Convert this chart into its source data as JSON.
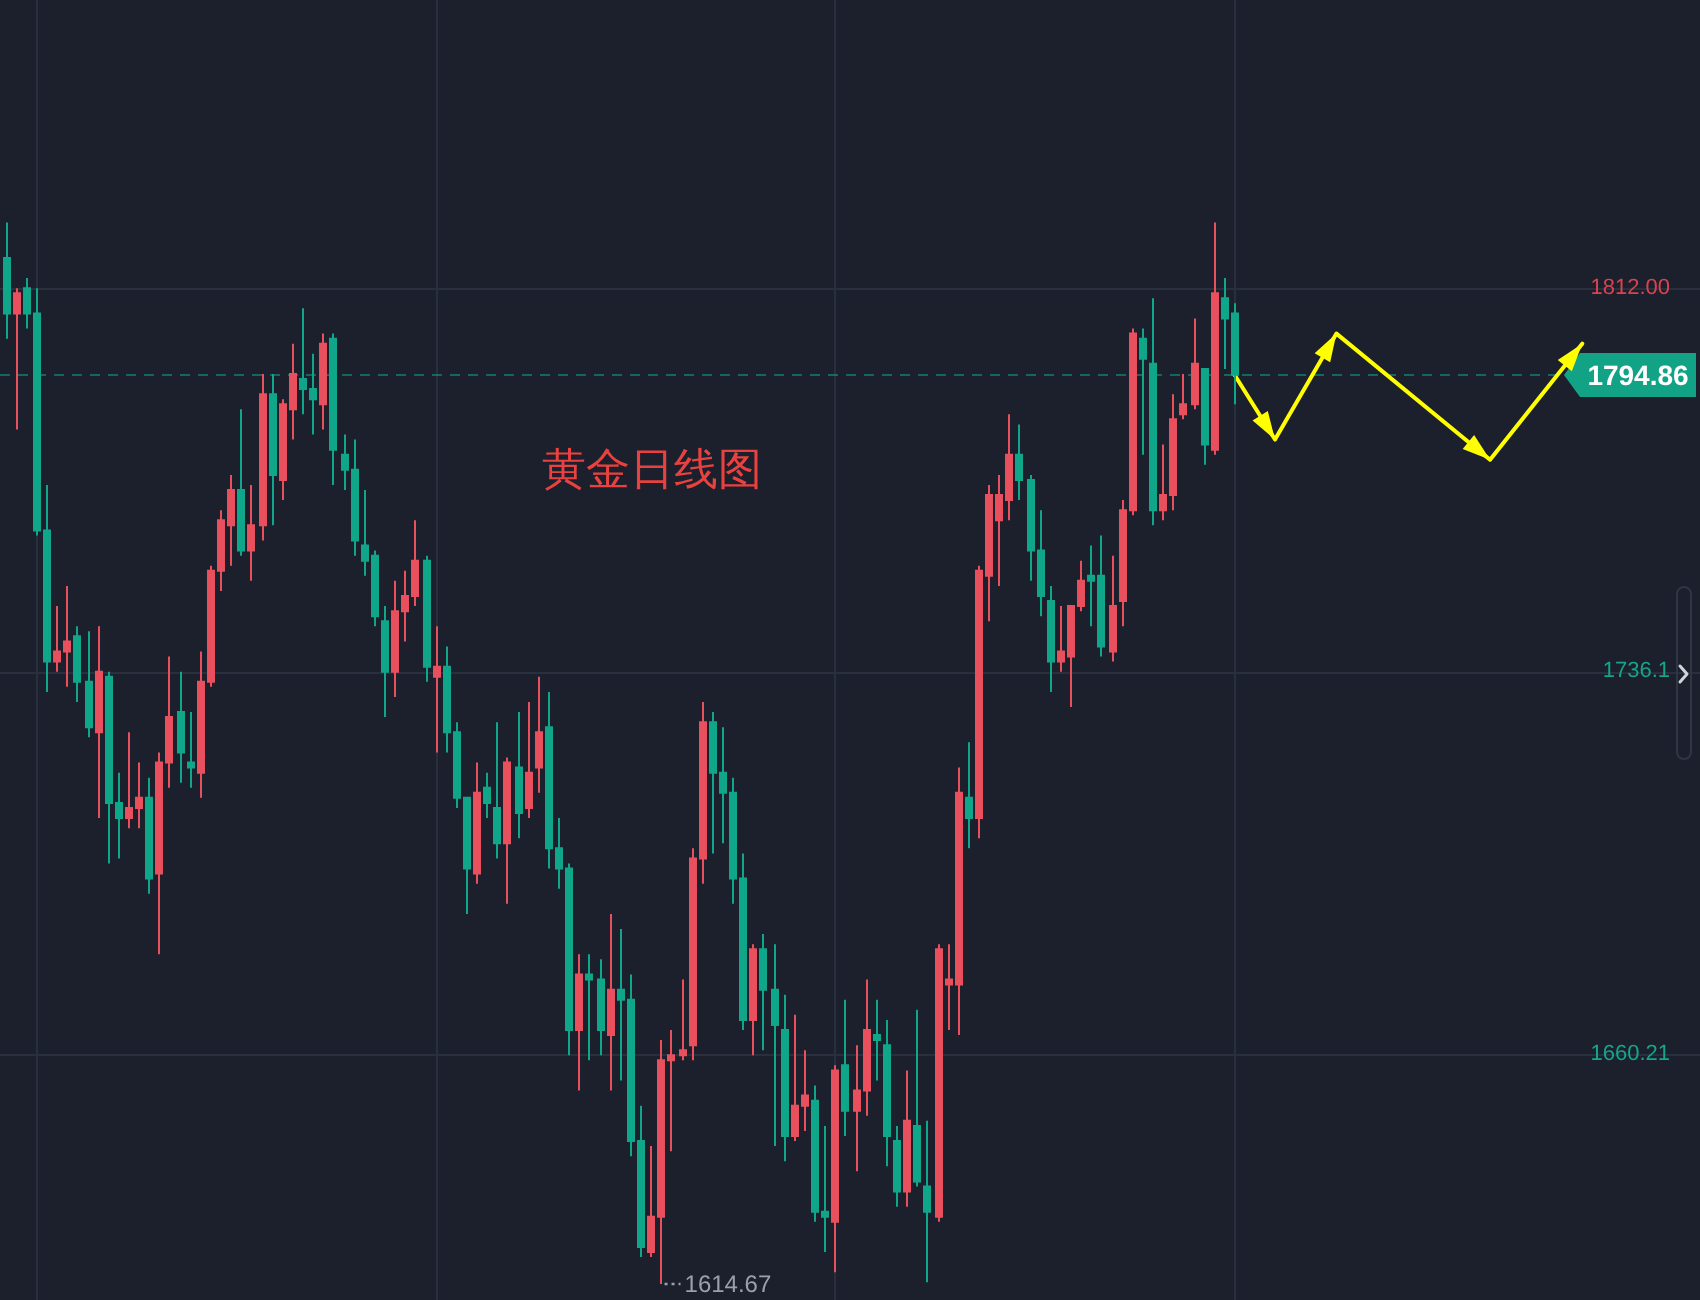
{
  "chart_data": {
    "type": "candlestick",
    "title": "黄金日线图",
    "categories": [
      null,
      null,
      null,
      null,
      null,
      null,
      null,
      null,
      null,
      null,
      null,
      null,
      null,
      null,
      null,
      null,
      null,
      null,
      null,
      null,
      null,
      null,
      null,
      null,
      null,
      null,
      null,
      null,
      null,
      null,
      null,
      null,
      null,
      null,
      null,
      null,
      null,
      null,
      null,
      null,
      null,
      null,
      null,
      null,
      null,
      null,
      null,
      null,
      null,
      null,
      null,
      null,
      null,
      null,
      null,
      null,
      null,
      null,
      null,
      null,
      null,
      null,
      null,
      null,
      null,
      null,
      null,
      null,
      null,
      null,
      null,
      null,
      null,
      null,
      null,
      null,
      null,
      null,
      null,
      null,
      null,
      null,
      null,
      null,
      null,
      null,
      null,
      null,
      null,
      null,
      null,
      null,
      null,
      null,
      null,
      null,
      null,
      null,
      null,
      null,
      null,
      null,
      null,
      null,
      null,
      null,
      null,
      null,
      null,
      null,
      null,
      null,
      null,
      null,
      null,
      null,
      null,
      null,
      null,
      null,
      null,
      null,
      null,
      null,
      null,
      null,
      null,
      null,
      null,
      null,
      null,
      null,
      null,
      null,
      null,
      null,
      null,
      null,
      null,
      null,
      null,
      null,
      null,
      null,
      null,
      null,
      null,
      null,
      null,
      null,
      null,
      null,
      null,
      null,
      null,
      null,
      null,
      null,
      null,
      null,
      null,
      null,
      null,
      null,
      null,
      null
    ],
    "ohlc": [
      [
        1818,
        1825,
        1802,
        1807
      ],
      [
        1807,
        1812,
        1784,
        1811
      ],
      [
        1812,
        1814,
        1804,
        1807
      ],
      [
        1807,
        1812,
        1763,
        1764
      ],
      [
        1764,
        1773,
        1732,
        1738
      ],
      [
        1738,
        1749,
        1736,
        1740
      ],
      [
        1740,
        1753,
        1733,
        1742
      ],
      [
        1743,
        1745,
        1730,
        1734
      ],
      [
        1734,
        1744,
        1723,
        1725
      ],
      [
        1724,
        1745,
        1707,
        1736
      ],
      [
        1735,
        1736,
        1698,
        1710
      ],
      [
        1710,
        1716,
        1699,
        1707
      ],
      [
        1707,
        1724,
        1705,
        1709
      ],
      [
        1709,
        1718,
        1705,
        1711
      ],
      [
        1711,
        1715,
        1692,
        1695
      ],
      [
        1696,
        1720,
        1680,
        1718
      ],
      [
        1718,
        1739,
        1713,
        1727
      ],
      [
        1728,
        1736,
        1714,
        1720
      ],
      [
        1718,
        1728,
        1713,
        1717
      ],
      [
        1716,
        1740,
        1711,
        1734
      ],
      [
        1734,
        1757,
        1733,
        1756
      ],
      [
        1756,
        1768,
        1752,
        1766
      ],
      [
        1765,
        1775,
        1757,
        1772
      ],
      [
        1772,
        1788,
        1759,
        1760
      ],
      [
        1760,
        1773,
        1754,
        1765
      ],
      [
        1765,
        1795,
        1762,
        1791
      ],
      [
        1791,
        1795,
        1765,
        1775
      ],
      [
        1774,
        1790,
        1770,
        1789
      ],
      [
        1788,
        1801,
        1782,
        1795
      ],
      [
        1794,
        1808,
        1787,
        1792
      ],
      [
        1792,
        1799,
        1783,
        1790
      ],
      [
        1789,
        1803,
        1784,
        1801
      ],
      [
        1802,
        1803,
        1773,
        1780
      ],
      [
        1779,
        1783,
        1772,
        1776
      ],
      [
        1776,
        1782,
        1759,
        1762
      ],
      [
        1761,
        1772,
        1755,
        1758
      ],
      [
        1759,
        1760,
        1745,
        1747
      ],
      [
        1746,
        1749,
        1727,
        1736
      ],
      [
        1736,
        1754,
        1731,
        1748
      ],
      [
        1748,
        1756,
        1742,
        1751
      ],
      [
        1751,
        1766,
        1749,
        1758
      ],
      [
        1758,
        1759,
        1734,
        1737
      ],
      [
        1735,
        1745,
        1720,
        1737
      ],
      [
        1737,
        1741,
        1720,
        1724
      ],
      [
        1724,
        1726,
        1709,
        1711
      ],
      [
        1711,
        1711,
        1688,
        1697
      ],
      [
        1696,
        1718,
        1694,
        1712
      ],
      [
        1713,
        1716,
        1707,
        1710
      ],
      [
        1709,
        1726,
        1699,
        1702
      ],
      [
        1702,
        1719,
        1690,
        1718
      ],
      [
        1717,
        1728,
        1703,
        1708
      ],
      [
        1709,
        1730,
        1707,
        1716
      ],
      [
        1717,
        1735,
        1712,
        1724
      ],
      [
        1725,
        1732,
        1697,
        1701
      ],
      [
        1701,
        1707,
        1693,
        1697
      ],
      [
        1697,
        1698,
        1660,
        1665
      ],
      [
        1665,
        1680,
        1653,
        1676
      ],
      [
        1676,
        1680,
        1659,
        1675
      ],
      [
        1675,
        1679,
        1660,
        1665
      ],
      [
        1664,
        1688,
        1653,
        1673
      ],
      [
        1673,
        1685,
        1655,
        1671
      ],
      [
        1671,
        1676,
        1640,
        1643
      ],
      [
        1643,
        1650,
        1620,
        1622
      ],
      [
        1621,
        1642,
        1620,
        1628
      ],
      [
        1628,
        1663,
        1614.67,
        1659
      ],
      [
        1659,
        1665,
        1641,
        1660
      ],
      [
        1660,
        1675,
        1659,
        1661
      ],
      [
        1662,
        1701,
        1659,
        1699
      ],
      [
        1699,
        1730,
        1694,
        1726
      ],
      [
        1726,
        1728,
        1700,
        1716
      ],
      [
        1716,
        1725,
        1702,
        1712
      ],
      [
        1712,
        1715,
        1690,
        1695
      ],
      [
        1695,
        1700,
        1665,
        1667
      ],
      [
        1667,
        1682,
        1660,
        1681
      ],
      [
        1681,
        1684,
        1661,
        1673
      ],
      [
        1673,
        1682,
        1642,
        1666
      ],
      [
        1665,
        1672,
        1639,
        1644
      ],
      [
        1644,
        1668,
        1643,
        1650
      ],
      [
        1650,
        1661,
        1645,
        1652
      ],
      [
        1651,
        1654,
        1627,
        1629
      ],
      [
        1629,
        1646,
        1621,
        1628
      ],
      [
        1627,
        1658,
        1617,
        1657
      ],
      [
        1658,
        1671,
        1644,
        1649
      ],
      [
        1649,
        1662,
        1637,
        1653
      ],
      [
        1653,
        1675,
        1648,
        1665
      ],
      [
        1664,
        1671,
        1655,
        1663
      ],
      [
        1662,
        1667,
        1638,
        1644
      ],
      [
        1643,
        1646,
        1630,
        1633
      ],
      [
        1633,
        1657,
        1630,
        1647
      ],
      [
        1646,
        1669,
        1634,
        1635
      ],
      [
        1634,
        1647,
        1615,
        1629
      ],
      [
        1628,
        1682,
        1627,
        1681
      ],
      [
        1674,
        1682,
        1665,
        1675
      ],
      [
        1674,
        1717,
        1664,
        1712
      ],
      [
        1711,
        1722,
        1701,
        1707
      ],
      [
        1707,
        1757,
        1703,
        1756
      ],
      [
        1755,
        1773,
        1746,
        1771
      ],
      [
        1766,
        1775,
        1753,
        1771
      ],
      [
        1770,
        1787,
        1766,
        1779
      ],
      [
        1779,
        1785,
        1770,
        1774
      ],
      [
        1774,
        1775,
        1754,
        1760
      ],
      [
        1760,
        1768,
        1747,
        1751
      ],
      [
        1750,
        1753,
        1732,
        1738
      ],
      [
        1738,
        1749,
        1736,
        1740
      ],
      [
        1739,
        1749,
        1729,
        1749
      ],
      [
        1749,
        1758,
        1748,
        1754
      ],
      [
        1755,
        1761,
        1745,
        1754
      ],
      [
        1755,
        1763,
        1739,
        1741
      ],
      [
        1740,
        1759,
        1738,
        1749
      ],
      [
        1750,
        1770,
        1745,
        1768
      ],
      [
        1768,
        1804,
        1767,
        1803
      ],
      [
        1802,
        1804,
        1779,
        1798
      ],
      [
        1797,
        1810,
        1765,
        1768
      ],
      [
        1768,
        1781,
        1766,
        1771
      ],
      [
        1771,
        1791,
        1768,
        1786
      ],
      [
        1787,
        1795,
        1786,
        1789
      ],
      [
        1789,
        1806,
        1788,
        1797
      ],
      [
        1796,
        1796,
        1777,
        1781
      ],
      [
        1780,
        1825,
        1779,
        1811
      ],
      [
        1810,
        1814,
        1796,
        1806
      ],
      [
        1807,
        1809,
        1789,
        1794.86
      ],
      null,
      null,
      null,
      null,
      null,
      null,
      null,
      null,
      null,
      null,
      null,
      null,
      null,
      null,
      null,
      null,
      null,
      null,
      null,
      null,
      null,
      null,
      null,
      null,
      null,
      null,
      null,
      null,
      null,
      null,
      null,
      null,
      null,
      null,
      null,
      null,
      null,
      null,
      null,
      null,
      null,
      null,
      null,
      null,
      null
    ],
    "colors": [
      "#10a689",
      "#e9505e",
      "#10a689",
      "#10a689",
      "#10a689",
      "#e9505e",
      "#e9505e",
      "#10a689",
      "#10a689",
      "#e9505e",
      "#10a689",
      "#10a689",
      "#e9505e",
      "#e9505e",
      "#10a689",
      "#e9505e",
      "#e9505e",
      "#10a689",
      "#10a689",
      "#e9505e",
      "#e9505e",
      "#e9505e",
      "#e9505e",
      "#10a689",
      "#e9505e",
      "#e9505e",
      "#10a689",
      "#e9505e",
      "#e9505e",
      "#10a689",
      "#10a689",
      "#e9505e",
      "#10a689",
      "#10a689",
      "#10a689",
      "#10a689",
      "#10a689",
      "#10a689",
      "#e9505e",
      "#e9505e",
      "#e9505e",
      "#10a689",
      "#e9505e",
      "#10a689",
      "#10a689",
      "#10a689",
      "#e9505e",
      "#10a689",
      "#10a689",
      "#e9505e",
      "#10a689",
      "#e9505e",
      "#e9505e",
      "#10a689",
      "#10a689",
      "#10a689",
      "#e9505e",
      "#10a689",
      "#10a689",
      "#e9505e",
      "#10a689",
      "#10a689",
      "#10a689",
      "#e9505e",
      "#e9505e",
      "#e9505e",
      "#e9505e",
      "#e9505e",
      "#e9505e",
      "#10a689",
      "#10a689",
      "#10a689",
      "#10a689",
      "#e9505e",
      "#10a689",
      "#10a689",
      "#10a689",
      "#e9505e",
      "#e9505e",
      "#10a689",
      "#10a689",
      "#e9505e",
      "#10a689",
      "#e9505e",
      "#e9505e",
      "#10a689",
      "#10a689",
      "#10a689",
      "#e9505e",
      "#10a689",
      "#10a689",
      "#e9505e",
      "#e9505e",
      "#e9505e",
      "#10a689",
      "#e9505e",
      "#e9505e",
      "#e9505e",
      "#e9505e",
      "#10a689",
      "#10a689",
      "#10a689",
      "#10a689",
      "#e9505e",
      "#e9505e",
      "#e9505e",
      "#10a689",
      "#10a689",
      "#e9505e",
      "#e9505e",
      "#e9505e",
      "#10a689",
      "#10a689",
      "#e9505e",
      "#e9505e",
      "#e9505e",
      "#e9505e",
      "#10a689",
      "#e9505e",
      "#10a689",
      "#10a689",
      null,
      null,
      null,
      null,
      null,
      null,
      null,
      null,
      null,
      null,
      null,
      null,
      null,
      null,
      null,
      null,
      null,
      null,
      null,
      null,
      null,
      null,
      null,
      null,
      null,
      null,
      null,
      null,
      null,
      null,
      null,
      null,
      null,
      null,
      null,
      null,
      null,
      null,
      null,
      null,
      null,
      null,
      null,
      null,
      null
    ],
    "series": [
      {
        "type": "line",
        "color": "#ffff00",
        "values": [
          null,
          null,
          null,
          null,
          null,
          null,
          null,
          null,
          null,
          null,
          null,
          null,
          null,
          null,
          null,
          null,
          null,
          null,
          null,
          null,
          null,
          null,
          null,
          null,
          null,
          null,
          null,
          null,
          null,
          null,
          null,
          null,
          null,
          null,
          null,
          null,
          null,
          null,
          null,
          null,
          null,
          null,
          null,
          null,
          null,
          null,
          null,
          null,
          null,
          null,
          null,
          null,
          null,
          null,
          null,
          null,
          null,
          null,
          null,
          null,
          null,
          null,
          null,
          null,
          null,
          null,
          null,
          null,
          null,
          null,
          null,
          null,
          null,
          null,
          null,
          null,
          null,
          null,
          null,
          null,
          null,
          null,
          null,
          null,
          null,
          null,
          null,
          null,
          null,
          null,
          null,
          null,
          null,
          null,
          null,
          null,
          null,
          null,
          null,
          null,
          null,
          null,
          null,
          null,
          null,
          null,
          null,
          null,
          null,
          null,
          null,
          null,
          null,
          null,
          null,
          null,
          null,
          null,
          null,
          null,
          1795,
          null,
          null,
          null,
          1782,
          null,
          null,
          null,
          null,
          null,
          1803,
          null,
          null,
          null,
          null,
          null,
          null,
          null,
          null,
          null,
          null,
          null,
          null,
          null,
          null,
          1778,
          null,
          null,
          null,
          null,
          null,
          null,
          null,
          null,
          1801,
          null,
          null,
          null,
          null,
          null,
          null,
          null,
          null,
          null,
          null,
          null
        ]
      }
    ],
    "ylim": [
      1611.5,
      1869.1
    ],
    "yticks": [
      1660.21,
      1736.1,
      {
        "value": 1812,
        "label": "1812.00"
      }
    ],
    "grid": true,
    "tick_labels": "y",
    "ref_lines": [
      {
        "axis": "y",
        "value": 1794.86,
        "label": "1794.86",
        "color": "#12a387",
        "line_style": "dashed"
      }
    ],
    "annotations": [
      "1614.67"
    ]
  }
}
